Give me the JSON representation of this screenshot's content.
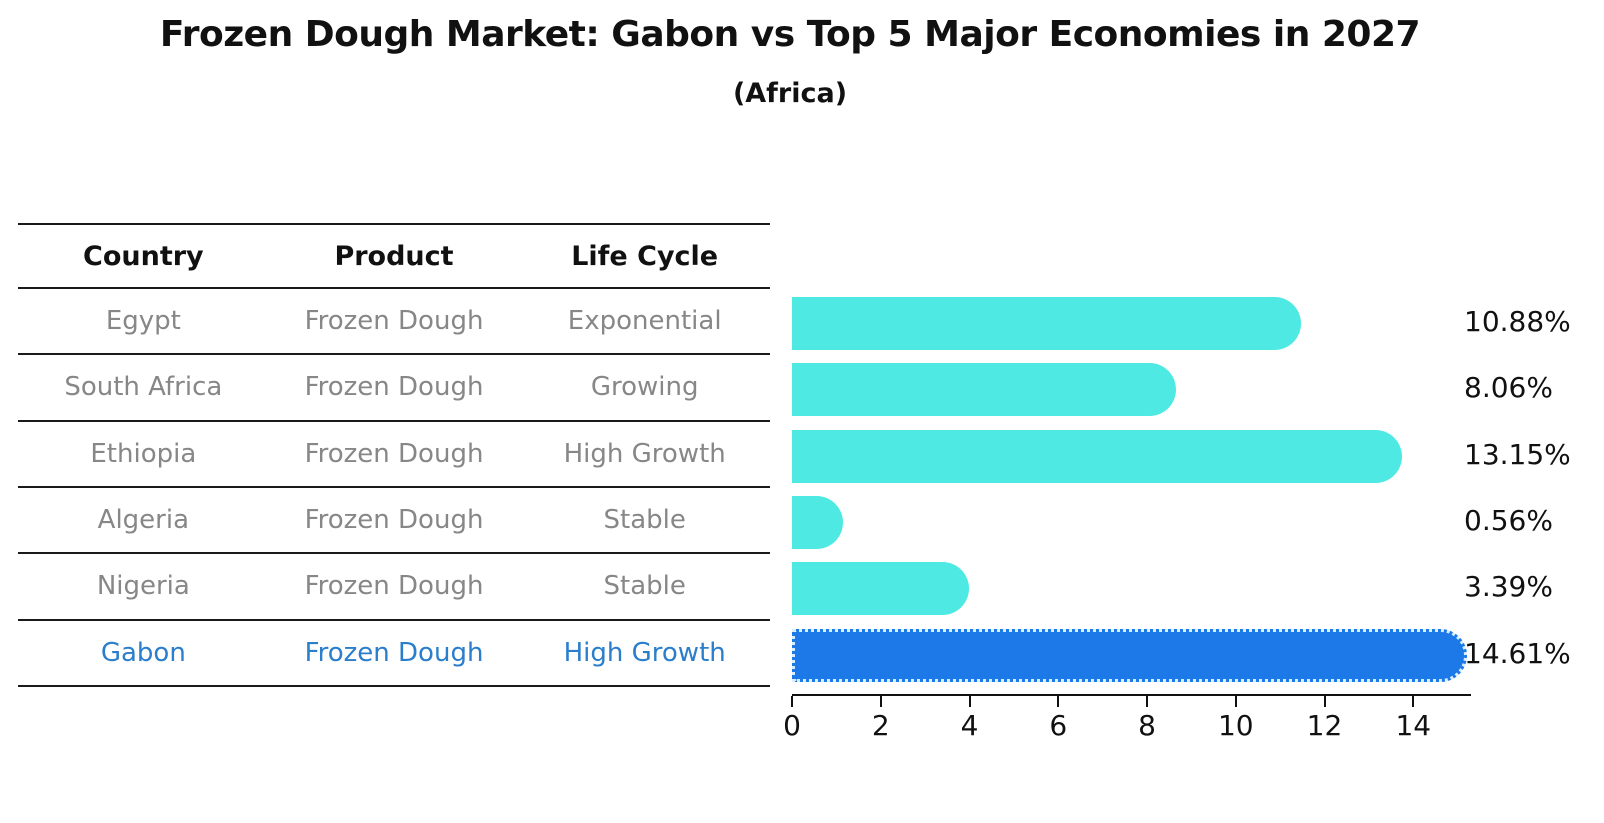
{
  "title": "Frozen Dough Market: Gabon vs Top 5 Major Economies in 2027",
  "subtitle": "(Africa)",
  "table": {
    "headers": [
      "Country",
      "Product",
      "Life Cycle"
    ],
    "rows": [
      {
        "country": "Egypt",
        "product": "Frozen Dough",
        "life_cycle": "Exponential",
        "highlight": false
      },
      {
        "country": "South Africa",
        "product": "Frozen Dough",
        "life_cycle": "Growing",
        "highlight": false
      },
      {
        "country": "Ethiopia",
        "product": "Frozen Dough",
        "life_cycle": "High Growth",
        "highlight": false
      },
      {
        "country": "Algeria",
        "product": "Frozen Dough",
        "life_cycle": "Stable",
        "highlight": false
      },
      {
        "country": "Nigeria",
        "product": "Frozen Dough",
        "life_cycle": "Stable",
        "highlight": false
      },
      {
        "country": "Gabon",
        "product": "Frozen Dough",
        "life_cycle": "High Growth",
        "highlight": true
      }
    ]
  },
  "chart_data": {
    "type": "bar",
    "orientation": "horizontal",
    "title": "Frozen Dough Market: Gabon vs Top 5 Major Economies in 2027",
    "subtitle": "(Africa)",
    "categories": [
      "Egypt",
      "South Africa",
      "Ethiopia",
      "Algeria",
      "Nigeria",
      "Gabon"
    ],
    "values": [
      10.88,
      8.06,
      13.15,
      0.56,
      3.39,
      14.61
    ],
    "labels": [
      "10.88%",
      "8.06%",
      "13.15%",
      "0.56%",
      "3.39%",
      "14.61%"
    ],
    "xlabel": "",
    "ylabel": "",
    "xticks": [
      0,
      2,
      4,
      6,
      8,
      10,
      12,
      14
    ],
    "xlim": [
      0,
      15.3
    ],
    "grid": false,
    "legend": false,
    "highlight_index": 5,
    "bar_color": "#4de9e2",
    "highlight_bar_color": "#1d78e8",
    "highlight_text_color": "#2b7ecb"
  },
  "colors": {
    "background": "#ffffff",
    "text": "#111111",
    "muted_text": "#878787",
    "table_line": "#1a1a1a"
  }
}
